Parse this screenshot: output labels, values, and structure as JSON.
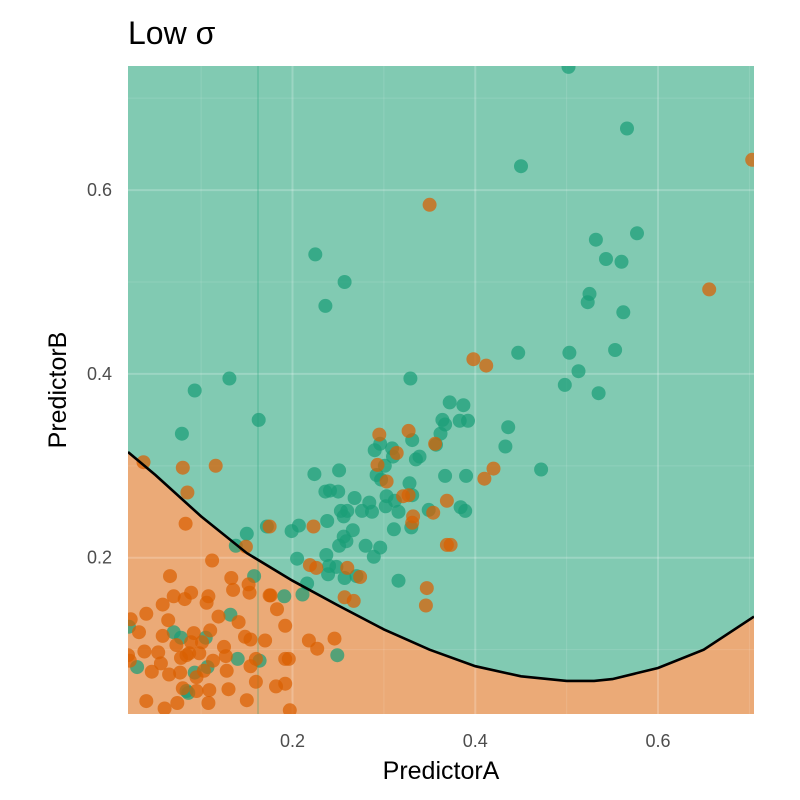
{
  "chart_data": {
    "type": "scatter",
    "title": "Low σ",
    "xlabel": "PredictorA",
    "ylabel": "PredictorB",
    "xlim": [
      0.02,
      0.705
    ],
    "ylim": [
      0.03,
      0.735
    ],
    "x_ticks": [
      "0.2",
      "0.4",
      "0.6"
    ],
    "y_ticks": [
      "0.2",
      "0.4",
      "0.6"
    ],
    "grid": true,
    "legend": "none",
    "colors": {
      "region_class1": "#81CAB2",
      "region_class2": "#EBAA77",
      "class1_points": "#1B9E77",
      "class2_points": "#D95F02",
      "boundary": "#000000"
    },
    "boundary": {
      "x": [
        0.02,
        0.05,
        0.1,
        0.15,
        0.2,
        0.25,
        0.3,
        0.35,
        0.4,
        0.45,
        0.5,
        0.53,
        0.55,
        0.6,
        0.65,
        0.705
      ],
      "y": [
        0.315,
        0.29,
        0.245,
        0.205,
        0.175,
        0.148,
        0.122,
        0.1,
        0.082,
        0.071,
        0.066,
        0.066,
        0.068,
        0.08,
        0.1,
        0.136
      ]
    },
    "series": [
      {
        "name": "",
        "points": [
          [
            0.502,
            0.734
          ],
          [
            0.566,
            0.667
          ],
          [
            0.45,
            0.626
          ],
          [
            0.577,
            0.553
          ],
          [
            0.532,
            0.546
          ],
          [
            0.543,
            0.525
          ],
          [
            0.56,
            0.522
          ],
          [
            0.225,
            0.53
          ],
          [
            0.257,
            0.5
          ],
          [
            0.236,
            0.474
          ],
          [
            0.525,
            0.487
          ],
          [
            0.523,
            0.478
          ],
          [
            0.562,
            0.467
          ],
          [
            0.447,
            0.423
          ],
          [
            0.503,
            0.423
          ],
          [
            0.553,
            0.426
          ],
          [
            0.513,
            0.403
          ],
          [
            0.498,
            0.388
          ],
          [
            0.535,
            0.379
          ],
          [
            0.093,
            0.382
          ],
          [
            0.131,
            0.395
          ],
          [
            0.329,
            0.395
          ],
          [
            0.372,
            0.369
          ],
          [
            0.387,
            0.366
          ],
          [
            0.383,
            0.349
          ],
          [
            0.392,
            0.349
          ],
          [
            0.364,
            0.35
          ],
          [
            0.367,
            0.345
          ],
          [
            0.436,
            0.342
          ],
          [
            0.163,
            0.35
          ],
          [
            0.079,
            0.335
          ],
          [
            0.331,
            0.328
          ],
          [
            0.362,
            0.335
          ],
          [
            0.357,
            0.323
          ],
          [
            0.296,
            0.324
          ],
          [
            0.29,
            0.317
          ],
          [
            0.309,
            0.319
          ],
          [
            0.433,
            0.321
          ],
          [
            0.31,
            0.31
          ],
          [
            0.339,
            0.31
          ],
          [
            0.335,
            0.307
          ],
          [
            0.472,
            0.296
          ],
          [
            0.224,
            0.291
          ],
          [
            0.251,
            0.295
          ],
          [
            0.292,
            0.29
          ],
          [
            0.297,
            0.285
          ],
          [
            0.301,
            0.3
          ],
          [
            0.328,
            0.281
          ],
          [
            0.367,
            0.289
          ],
          [
            0.39,
            0.289
          ],
          [
            0.25,
            0.272
          ],
          [
            0.236,
            0.272
          ],
          [
            0.241,
            0.273
          ],
          [
            0.268,
            0.265
          ],
          [
            0.284,
            0.26
          ],
          [
            0.303,
            0.267
          ],
          [
            0.312,
            0.262
          ],
          [
            0.331,
            0.268
          ],
          [
            0.302,
            0.256
          ],
          [
            0.276,
            0.251
          ],
          [
            0.287,
            0.25
          ],
          [
            0.316,
            0.25
          ],
          [
            0.349,
            0.252
          ],
          [
            0.384,
            0.255
          ],
          [
            0.389,
            0.251
          ],
          [
            0.253,
            0.251
          ],
          [
            0.256,
            0.245
          ],
          [
            0.26,
            0.251
          ],
          [
            0.238,
            0.24
          ],
          [
            0.207,
            0.235
          ],
          [
            0.199,
            0.229
          ],
          [
            0.172,
            0.234
          ],
          [
            0.15,
            0.226
          ],
          [
            0.33,
            0.233
          ],
          [
            0.311,
            0.231
          ],
          [
            0.256,
            0.223
          ],
          [
            0.259,
            0.218
          ],
          [
            0.266,
            0.23
          ],
          [
            0.251,
            0.213
          ],
          [
            0.237,
            0.203
          ],
          [
            0.296,
            0.211
          ],
          [
            0.28,
            0.213
          ],
          [
            0.289,
            0.201
          ],
          [
            0.138,
            0.213
          ],
          [
            0.205,
            0.199
          ],
          [
            0.24,
            0.191
          ],
          [
            0.248,
            0.19
          ],
          [
            0.216,
            0.172
          ],
          [
            0.239,
            0.182
          ],
          [
            0.257,
            0.178
          ],
          [
            0.27,
            0.18
          ],
          [
            0.158,
            0.18
          ],
          [
            0.316,
            0.175
          ],
          [
            0.191,
            0.158
          ],
          [
            0.211,
            0.16
          ],
          [
            0.132,
            0.138
          ],
          [
            0.021,
            0.125
          ],
          [
            0.07,
            0.119
          ],
          [
            0.078,
            0.113
          ],
          [
            0.105,
            0.113
          ],
          [
            0.03,
            0.081
          ],
          [
            0.107,
            0.081
          ],
          [
            0.093,
            0.075
          ],
          [
            0.14,
            0.09
          ],
          [
            0.164,
            0.088
          ],
          [
            0.249,
            0.094
          ],
          [
            0.086,
            0.053
          ],
          [
            0.084,
            0.055
          ]
        ]
      },
      {
        "name": "",
        "points": [
          [
            0.703,
            0.633
          ],
          [
            0.35,
            0.584
          ],
          [
            0.656,
            0.492
          ],
          [
            0.398,
            0.416
          ],
          [
            0.412,
            0.409
          ],
          [
            0.295,
            0.334
          ],
          [
            0.327,
            0.338
          ],
          [
            0.356,
            0.324
          ],
          [
            0.314,
            0.314
          ],
          [
            0.293,
            0.301
          ],
          [
            0.116,
            0.3
          ],
          [
            0.08,
            0.298
          ],
          [
            0.037,
            0.304
          ],
          [
            0.42,
            0.297
          ],
          [
            0.41,
            0.286
          ],
          [
            0.085,
            0.271
          ],
          [
            0.303,
            0.283
          ],
          [
            0.327,
            0.268
          ],
          [
            0.321,
            0.267
          ],
          [
            0.369,
            0.262
          ],
          [
            0.354,
            0.249
          ],
          [
            0.332,
            0.245
          ],
          [
            0.331,
            0.238
          ],
          [
            0.083,
            0.237
          ],
          [
            0.175,
            0.234
          ],
          [
            0.223,
            0.234
          ],
          [
            0.149,
            0.212
          ],
          [
            0.369,
            0.214
          ],
          [
            0.373,
            0.214
          ],
          [
            0.112,
            0.197
          ],
          [
            0.219,
            0.192
          ],
          [
            0.226,
            0.189
          ],
          [
            0.26,
            0.189
          ],
          [
            0.274,
            0.179
          ],
          [
            0.066,
            0.18
          ],
          [
            0.133,
            0.178
          ],
          [
            0.152,
            0.171
          ],
          [
            0.089,
            0.162
          ],
          [
            0.082,
            0.155
          ],
          [
            0.135,
            0.165
          ],
          [
            0.07,
            0.158
          ],
          [
            0.108,
            0.158
          ],
          [
            0.153,
            0.162
          ],
          [
            0.347,
            0.167
          ],
          [
            0.058,
            0.149
          ],
          [
            0.106,
            0.151
          ],
          [
            0.175,
            0.159
          ],
          [
            0.176,
            0.159
          ],
          [
            0.183,
            0.144
          ],
          [
            0.119,
            0.136
          ],
          [
            0.04,
            0.139
          ],
          [
            0.064,
            0.132
          ],
          [
            0.257,
            0.157
          ],
          [
            0.267,
            0.153
          ],
          [
            0.346,
            0.148
          ],
          [
            0.141,
            0.13
          ],
          [
            0.192,
            0.126
          ],
          [
            0.023,
            0.133
          ],
          [
            0.092,
            0.118
          ],
          [
            0.11,
            0.121
          ],
          [
            0.058,
            0.115
          ],
          [
            0.032,
            0.119
          ],
          [
            0.089,
            0.108
          ],
          [
            0.101,
            0.108
          ],
          [
            0.148,
            0.114
          ],
          [
            0.154,
            0.111
          ],
          [
            0.17,
            0.11
          ],
          [
            0.218,
            0.11
          ],
          [
            0.246,
            0.112
          ],
          [
            0.227,
            0.101
          ],
          [
            0.125,
            0.103
          ],
          [
            0.073,
            0.105
          ],
          [
            0.038,
            0.098
          ],
          [
            0.053,
            0.097
          ],
          [
            0.087,
            0.096
          ],
          [
            0.098,
            0.096
          ],
          [
            0.127,
            0.093
          ],
          [
            0.16,
            0.09
          ],
          [
            0.192,
            0.09
          ],
          [
            0.196,
            0.09
          ],
          [
            0.078,
            0.091
          ],
          [
            0.084,
            0.094
          ],
          [
            0.02,
            0.094
          ],
          [
            0.022,
            0.088
          ],
          [
            0.056,
            0.085
          ],
          [
            0.113,
            0.088
          ],
          [
            0.154,
            0.082
          ],
          [
            0.128,
            0.077
          ],
          [
            0.046,
            0.076
          ],
          [
            0.065,
            0.073
          ],
          [
            0.077,
            0.075
          ],
          [
            0.103,
            0.077
          ],
          [
            0.095,
            0.07
          ],
          [
            0.16,
            0.065
          ],
          [
            0.192,
            0.063
          ],
          [
            0.182,
            0.06
          ],
          [
            0.13,
            0.057
          ],
          [
            0.08,
            0.058
          ],
          [
            0.095,
            0.055
          ],
          [
            0.109,
            0.056
          ],
          [
            0.04,
            0.044
          ],
          [
            0.074,
            0.042
          ],
          [
            0.108,
            0.042
          ],
          [
            0.15,
            0.045
          ],
          [
            0.06,
            0.036
          ],
          [
            0.197,
            0.034
          ]
        ]
      }
    ]
  }
}
